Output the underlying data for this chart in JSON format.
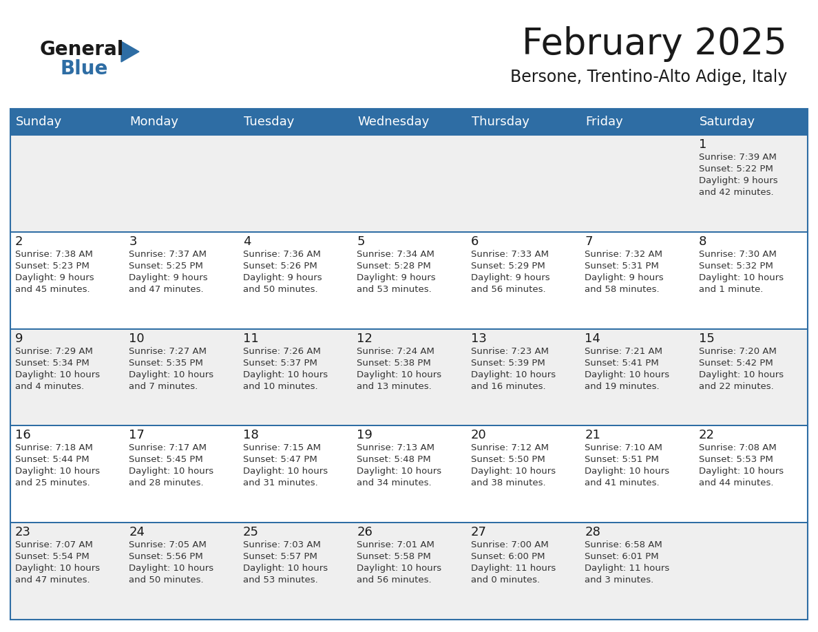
{
  "title": "February 2025",
  "subtitle": "Bersone, Trentino-Alto Adige, Italy",
  "header_bg": "#2E6DA4",
  "header_text_color": "#FFFFFF",
  "cell_bg_odd": "#EFEFEF",
  "cell_bg_even": "#FFFFFF",
  "text_color_day": "#1a1a1a",
  "text_color_content": "#333333",
  "days_of_week": [
    "Sunday",
    "Monday",
    "Tuesday",
    "Wednesday",
    "Thursday",
    "Friday",
    "Saturday"
  ],
  "calendar": [
    [
      null,
      null,
      null,
      null,
      null,
      null,
      {
        "day": "1",
        "sunrise": "7:39 AM",
        "sunset": "5:22 PM",
        "daylight": "9 hours",
        "daylight2": "and 42 minutes."
      }
    ],
    [
      {
        "day": "2",
        "sunrise": "7:38 AM",
        "sunset": "5:23 PM",
        "daylight": "9 hours",
        "daylight2": "and 45 minutes."
      },
      {
        "day": "3",
        "sunrise": "7:37 AM",
        "sunset": "5:25 PM",
        "daylight": "9 hours",
        "daylight2": "and 47 minutes."
      },
      {
        "day": "4",
        "sunrise": "7:36 AM",
        "sunset": "5:26 PM",
        "daylight": "9 hours",
        "daylight2": "and 50 minutes."
      },
      {
        "day": "5",
        "sunrise": "7:34 AM",
        "sunset": "5:28 PM",
        "daylight": "9 hours",
        "daylight2": "and 53 minutes."
      },
      {
        "day": "6",
        "sunrise": "7:33 AM",
        "sunset": "5:29 PM",
        "daylight": "9 hours",
        "daylight2": "and 56 minutes."
      },
      {
        "day": "7",
        "sunrise": "7:32 AM",
        "sunset": "5:31 PM",
        "daylight": "9 hours",
        "daylight2": "and 58 minutes."
      },
      {
        "day": "8",
        "sunrise": "7:30 AM",
        "sunset": "5:32 PM",
        "daylight": "10 hours",
        "daylight2": "and 1 minute."
      }
    ],
    [
      {
        "day": "9",
        "sunrise": "7:29 AM",
        "sunset": "5:34 PM",
        "daylight": "10 hours",
        "daylight2": "and 4 minutes."
      },
      {
        "day": "10",
        "sunrise": "7:27 AM",
        "sunset": "5:35 PM",
        "daylight": "10 hours",
        "daylight2": "and 7 minutes."
      },
      {
        "day": "11",
        "sunrise": "7:26 AM",
        "sunset": "5:37 PM",
        "daylight": "10 hours",
        "daylight2": "and 10 minutes."
      },
      {
        "day": "12",
        "sunrise": "7:24 AM",
        "sunset": "5:38 PM",
        "daylight": "10 hours",
        "daylight2": "and 13 minutes."
      },
      {
        "day": "13",
        "sunrise": "7:23 AM",
        "sunset": "5:39 PM",
        "daylight": "10 hours",
        "daylight2": "and 16 minutes."
      },
      {
        "day": "14",
        "sunrise": "7:21 AM",
        "sunset": "5:41 PM",
        "daylight": "10 hours",
        "daylight2": "and 19 minutes."
      },
      {
        "day": "15",
        "sunrise": "7:20 AM",
        "sunset": "5:42 PM",
        "daylight": "10 hours",
        "daylight2": "and 22 minutes."
      }
    ],
    [
      {
        "day": "16",
        "sunrise": "7:18 AM",
        "sunset": "5:44 PM",
        "daylight": "10 hours",
        "daylight2": "and 25 minutes."
      },
      {
        "day": "17",
        "sunrise": "7:17 AM",
        "sunset": "5:45 PM",
        "daylight": "10 hours",
        "daylight2": "and 28 minutes."
      },
      {
        "day": "18",
        "sunrise": "7:15 AM",
        "sunset": "5:47 PM",
        "daylight": "10 hours",
        "daylight2": "and 31 minutes."
      },
      {
        "day": "19",
        "sunrise": "7:13 AM",
        "sunset": "5:48 PM",
        "daylight": "10 hours",
        "daylight2": "and 34 minutes."
      },
      {
        "day": "20",
        "sunrise": "7:12 AM",
        "sunset": "5:50 PM",
        "daylight": "10 hours",
        "daylight2": "and 38 minutes."
      },
      {
        "day": "21",
        "sunrise": "7:10 AM",
        "sunset": "5:51 PM",
        "daylight": "10 hours",
        "daylight2": "and 41 minutes."
      },
      {
        "day": "22",
        "sunrise": "7:08 AM",
        "sunset": "5:53 PM",
        "daylight": "10 hours",
        "daylight2": "and 44 minutes."
      }
    ],
    [
      {
        "day": "23",
        "sunrise": "7:07 AM",
        "sunset": "5:54 PM",
        "daylight": "10 hours",
        "daylight2": "and 47 minutes."
      },
      {
        "day": "24",
        "sunrise": "7:05 AM",
        "sunset": "5:56 PM",
        "daylight": "10 hours",
        "daylight2": "and 50 minutes."
      },
      {
        "day": "25",
        "sunrise": "7:03 AM",
        "sunset": "5:57 PM",
        "daylight": "10 hours",
        "daylight2": "and 53 minutes."
      },
      {
        "day": "26",
        "sunrise": "7:01 AM",
        "sunset": "5:58 PM",
        "daylight": "10 hours",
        "daylight2": "and 56 minutes."
      },
      {
        "day": "27",
        "sunrise": "7:00 AM",
        "sunset": "6:00 PM",
        "daylight": "11 hours",
        "daylight2": "and 0 minutes."
      },
      {
        "day": "28",
        "sunrise": "6:58 AM",
        "sunset": "6:01 PM",
        "daylight": "11 hours",
        "daylight2": "and 3 minutes."
      },
      null
    ]
  ],
  "logo_color1": "#1a1a1a",
  "logo_color2": "#2E6DA4",
  "logo_triangle_color": "#2E6DA4",
  "title_fontsize": 38,
  "subtitle_fontsize": 17,
  "header_fontsize": 13,
  "day_num_fontsize": 13,
  "cell_fontsize": 9.5
}
